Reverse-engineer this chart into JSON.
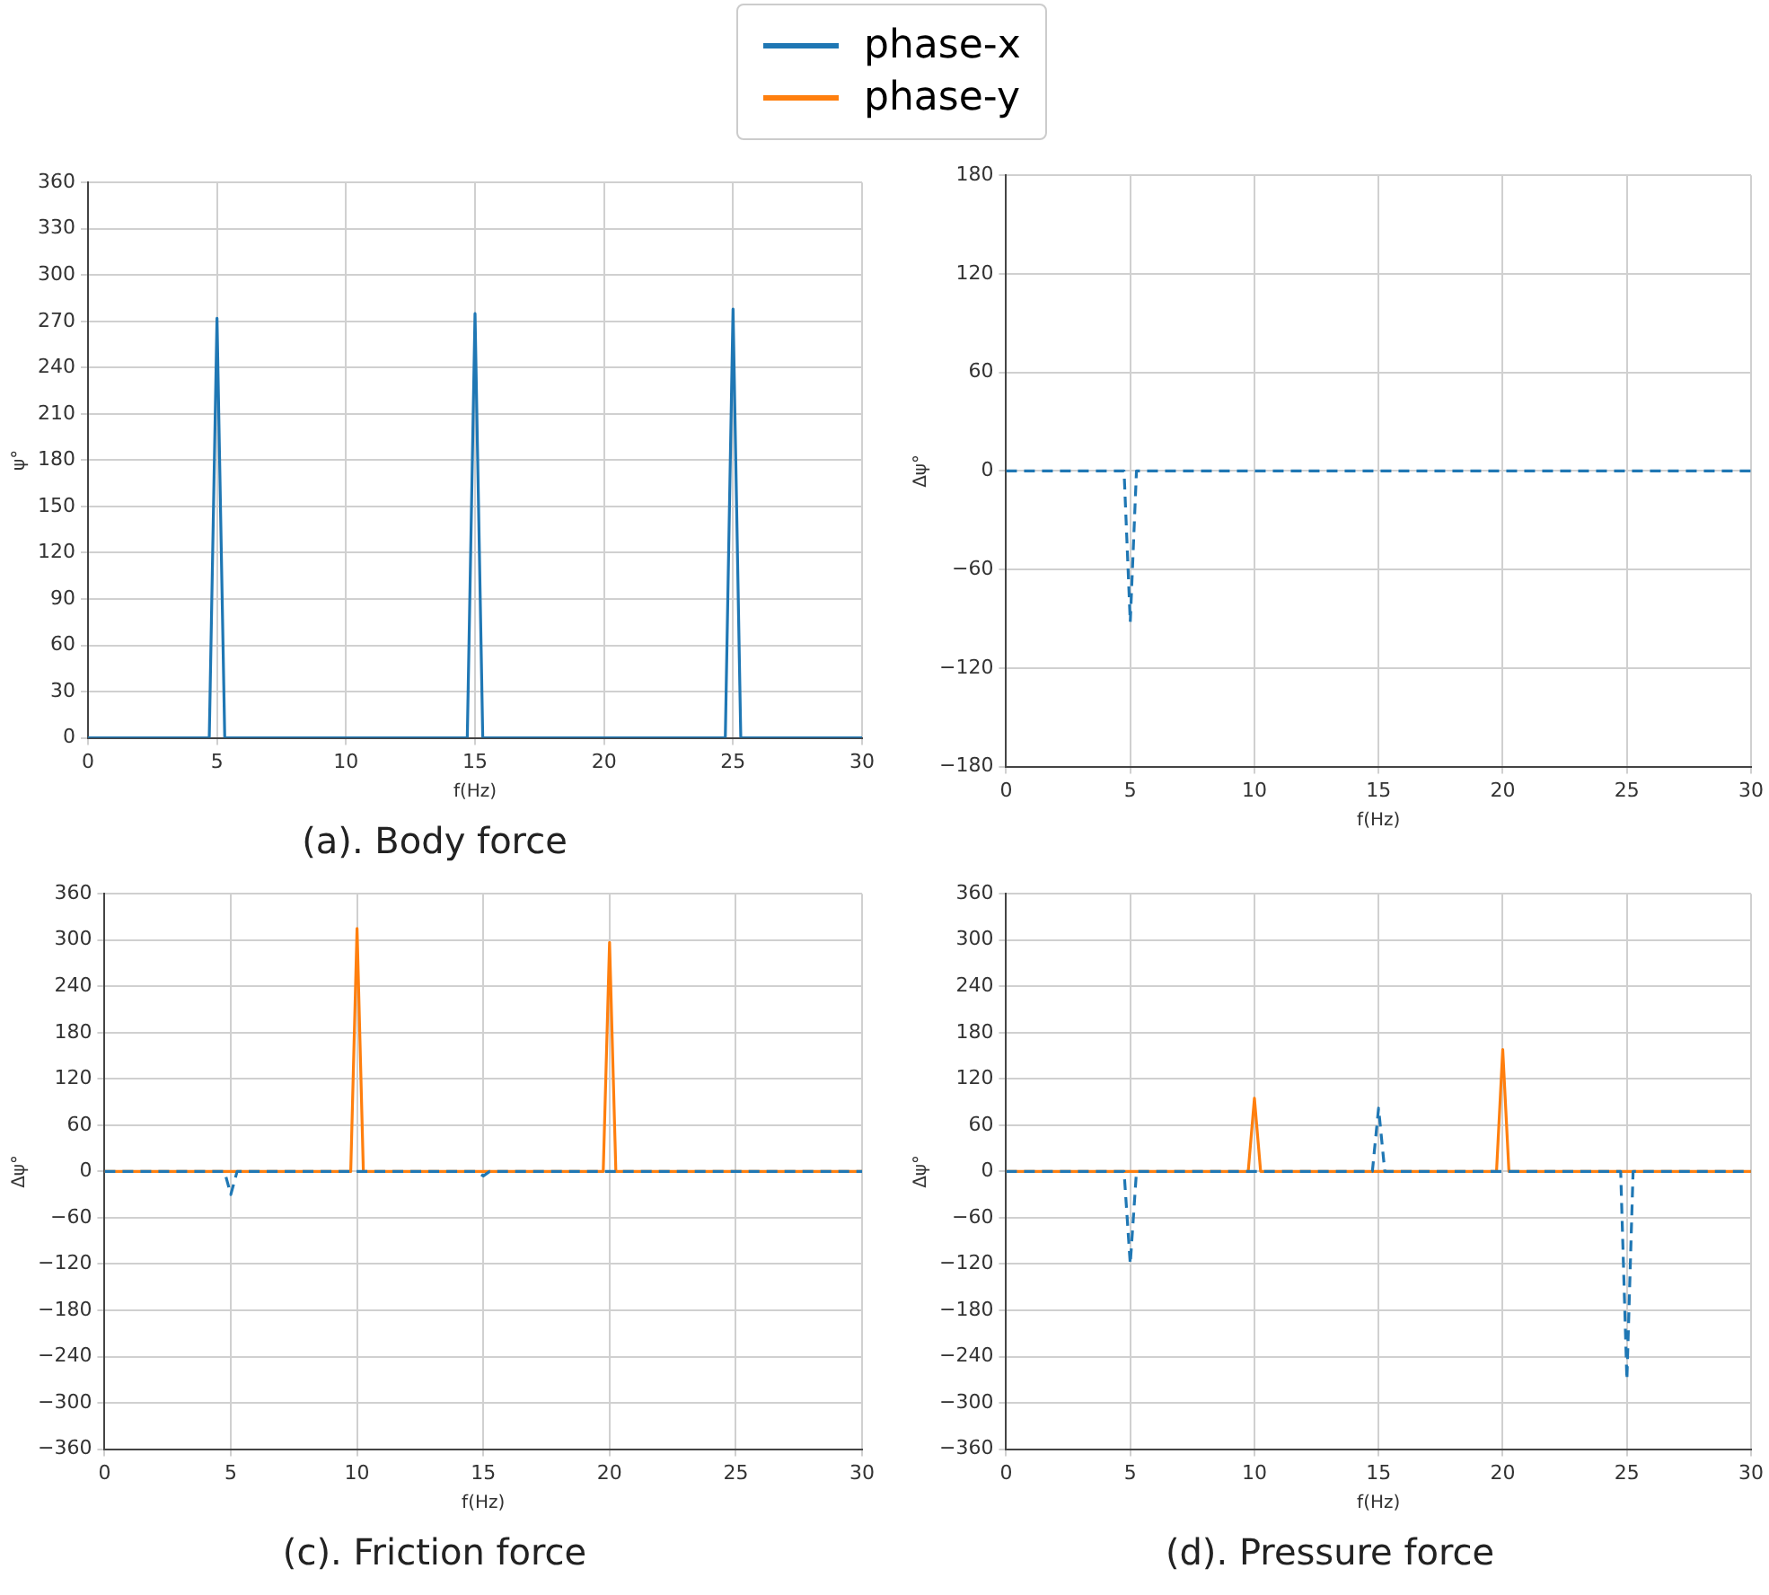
{
  "chart_data": [
    {
      "type": "line",
      "title": "(a). Body force",
      "xlabel": "f(Hz)",
      "ylabel": "ψ°",
      "legend": "top",
      "grid": true,
      "marker": "none",
      "xlim": [
        0,
        30
      ],
      "xticks": [
        0,
        5,
        10,
        15,
        20,
        25,
        30
      ],
      "ylim": [
        0,
        360
      ],
      "yticks": [
        0,
        30,
        60,
        90,
        120,
        150,
        180,
        210,
        240,
        270,
        300,
        330,
        360
      ],
      "series": [
        {
          "name": "phase-x",
          "color": "#1f77b4",
          "line_style": "solid",
          "x": [
            0,
            4.7,
            5,
            5.3,
            14.7,
            15,
            15.3,
            24.7,
            25,
            25.3,
            30
          ],
          "values": [
            0,
            0,
            272,
            0,
            0,
            275,
            0,
            0,
            278,
            0,
            0
          ]
        }
      ]
    },
    {
      "type": "line",
      "xlabel": "f(Hz)",
      "ylabel": "Δψ°",
      "legend": "top",
      "grid": true,
      "marker": "none",
      "xlim": [
        0,
        30
      ],
      "xticks": [
        0,
        5,
        10,
        15,
        20,
        25,
        30
      ],
      "ylim": [
        -180,
        180
      ],
      "yticks": [
        {
          "value": -180,
          "label": "−180"
        },
        {
          "value": -120,
          "label": "−120"
        },
        {
          "value": -60,
          "label": "−60"
        },
        0,
        60,
        120,
        180
      ],
      "series": [
        {
          "name": "phase-x",
          "color": "#1f77b4",
          "line_style": "dashed",
          "x": [
            0,
            4.75,
            5,
            5.25,
            30
          ],
          "values": [
            0,
            0,
            -92,
            0,
            0
          ]
        }
      ]
    },
    {
      "type": "line",
      "title": "(c). Friction force",
      "xlabel": "f(Hz)",
      "ylabel": "Δψ°",
      "legend": "top",
      "grid": true,
      "marker": "none",
      "xlim": [
        0,
        30
      ],
      "xticks": [
        0,
        5,
        10,
        15,
        20,
        25,
        30
      ],
      "ylim": [
        -360,
        360
      ],
      "yticks": [
        {
          "value": -360,
          "label": "−360"
        },
        {
          "value": -300,
          "label": "−300"
        },
        {
          "value": -240,
          "label": "−240"
        },
        {
          "value": -180,
          "label": "−180"
        },
        {
          "value": -120,
          "label": "−120"
        },
        {
          "value": -60,
          "label": "−60"
        },
        0,
        60,
        120,
        180,
        240,
        300,
        360
      ],
      "series": [
        {
          "name": "phase-x",
          "color": "#1f77b4",
          "line_style": "dashed",
          "x": [
            0,
            4.75,
            5,
            5.25,
            14.75,
            15,
            15.25,
            30
          ],
          "values": [
            0,
            0,
            -30,
            0,
            0,
            -6,
            0,
            0
          ]
        },
        {
          "name": "phase-y",
          "color": "#ff7f0e",
          "line_style": "solid",
          "x": [
            0,
            9.75,
            10,
            10.25,
            19.75,
            20,
            20.25,
            30
          ],
          "values": [
            0,
            0,
            315,
            0,
            0,
            297,
            0,
            0
          ]
        }
      ]
    },
    {
      "type": "line",
      "title": "(d). Pressure force",
      "xlabel": "f(Hz)",
      "ylabel": "Δψ°",
      "legend": "top",
      "grid": true,
      "marker": "none",
      "xlim": [
        0,
        30
      ],
      "xticks": [
        0,
        5,
        10,
        15,
        20,
        25,
        30
      ],
      "ylim": [
        -360,
        360
      ],
      "yticks": [
        {
          "value": -360,
          "label": "−360"
        },
        {
          "value": -300,
          "label": "−300"
        },
        {
          "value": -240,
          "label": "−240"
        },
        {
          "value": -180,
          "label": "−180"
        },
        {
          "value": -120,
          "label": "−120"
        },
        {
          "value": -60,
          "label": "−60"
        },
        0,
        60,
        120,
        180,
        240,
        300,
        360
      ],
      "series": [
        {
          "name": "phase-x",
          "color": "#1f77b4",
          "line_style": "dashed",
          "x": [
            0,
            4.75,
            5,
            5.25,
            14.75,
            15,
            15.25,
            24.75,
            25,
            25.25,
            30
          ],
          "values": [
            0,
            0,
            -120,
            0,
            0,
            82,
            0,
            0,
            -270,
            0,
            0
          ]
        },
        {
          "name": "phase-y",
          "color": "#ff7f0e",
          "line_style": "solid",
          "x": [
            0,
            9.75,
            10,
            10.25,
            19.75,
            20,
            20.25,
            30
          ],
          "values": [
            0,
            0,
            95,
            0,
            0,
            158,
            0,
            0
          ]
        }
      ]
    }
  ]
}
